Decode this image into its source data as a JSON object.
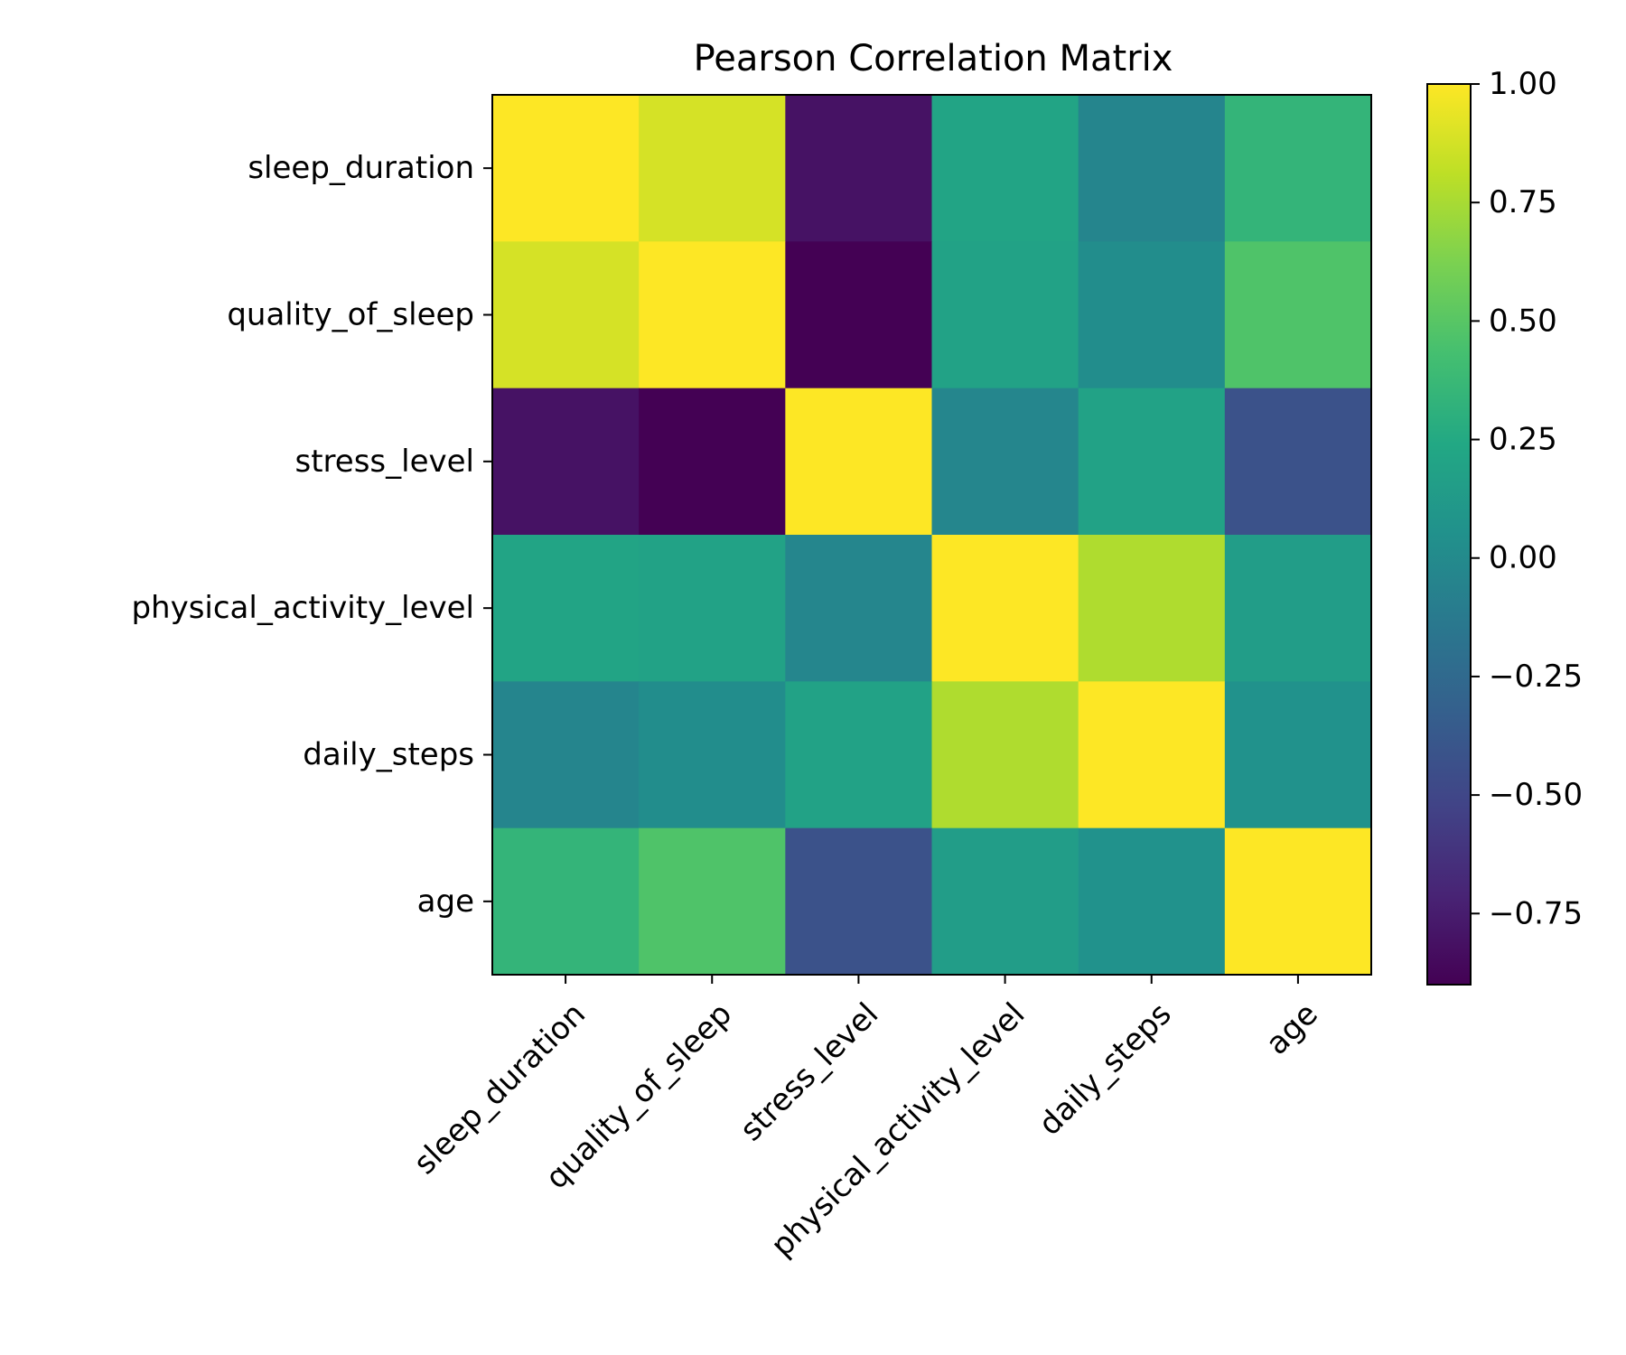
{
  "chart_data": {
    "type": "heatmap",
    "title": "Pearson Correlation Matrix",
    "xlabel": "",
    "ylabel": "",
    "x_categories": [
      "sleep_duration",
      "quality_of_sleep",
      "stress_level",
      "physical_activity_level",
      "daily_steps",
      "age"
    ],
    "y_categories": [
      "sleep_duration",
      "quality_of_sleep",
      "stress_level",
      "physical_activity_level",
      "daily_steps",
      "age"
    ],
    "values": [
      [
        1.0,
        0.88,
        -0.81,
        0.21,
        -0.04,
        0.34
      ],
      [
        0.88,
        1.0,
        -0.9,
        0.19,
        0.02,
        0.47
      ],
      [
        -0.81,
        -0.9,
        1.0,
        -0.03,
        0.19,
        -0.42
      ],
      [
        0.21,
        0.19,
        -0.03,
        1.0,
        0.77,
        0.15
      ],
      [
        -0.04,
        0.02,
        0.19,
        0.77,
        1.0,
        0.06
      ],
      [
        0.34,
        0.47,
        -0.42,
        0.15,
        0.06,
        1.0
      ]
    ],
    "colormap": "viridis",
    "colorbar": {
      "range": [
        -0.9,
        1.0
      ],
      "ticks": [
        1.0,
        0.75,
        0.5,
        0.25,
        0.0,
        -0.25,
        -0.5,
        -0.75
      ],
      "tick_labels": [
        "1.00",
        "0.75",
        "0.50",
        "0.25",
        "0.00",
        "−0.25",
        "−0.50",
        "−0.75"
      ],
      "position": "right"
    },
    "grid": false,
    "legend": "none"
  }
}
